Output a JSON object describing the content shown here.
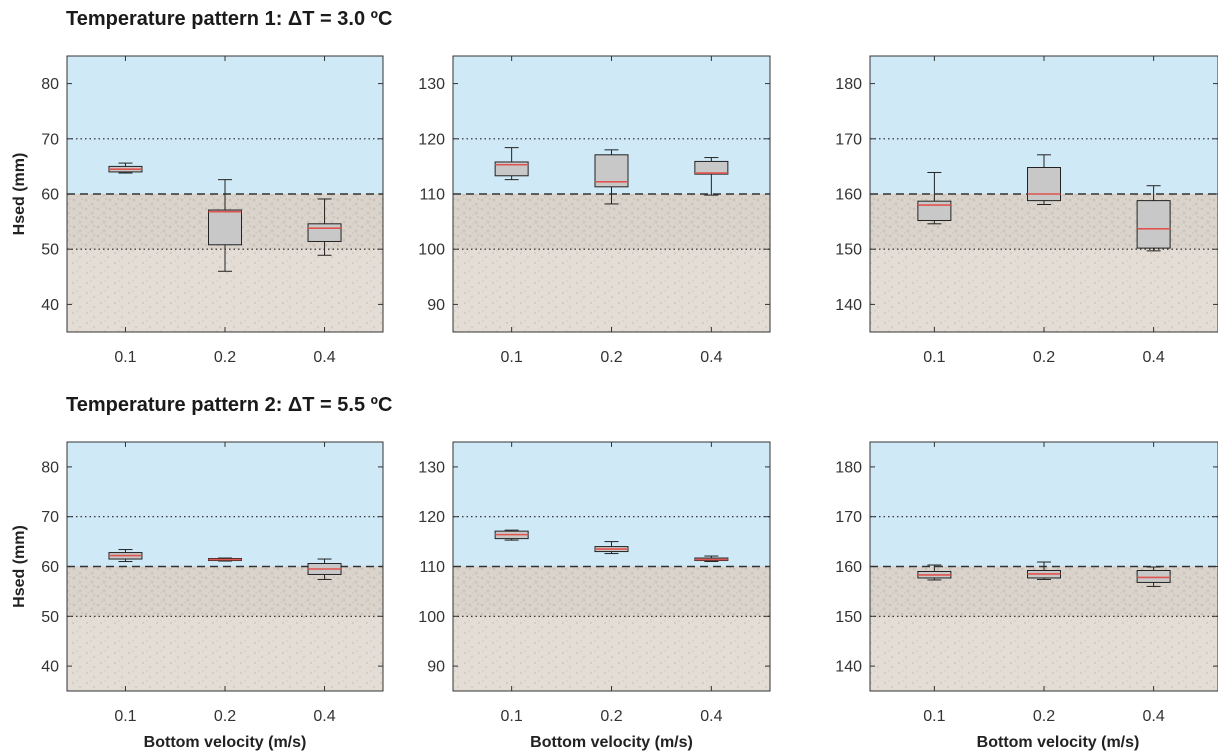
{
  "rows": [
    {
      "title": "Temperature pattern 1: ΔT = 3.0 ºC"
    },
    {
      "title": "Temperature pattern 2: ΔT = 5.5 ºC"
    }
  ],
  "ylabel": "Hsed (mm)",
  "xlabel": "Bottom velocity (m/s)",
  "colors": {
    "water": "#cfe9f7",
    "sediment": "#e3ddd5",
    "transition": "#dcd6cf",
    "box_fill": "#c8c8c8",
    "median": "#e0544f",
    "frame": "#333333"
  },
  "chart_data": [
    {
      "type": "box",
      "row": 1,
      "col": 1,
      "categories": [
        "0.1",
        "0.2",
        "0.4"
      ],
      "ylim": [
        35,
        85
      ],
      "yticks": [
        40,
        50,
        60,
        70,
        80
      ],
      "interface": 60,
      "dotted_lines": [
        50,
        70
      ],
      "boxes": [
        {
          "whisker_low": 63.8,
          "q1": 64.0,
          "median": 64.5,
          "q3": 65.0,
          "whisker_high": 65.6
        },
        {
          "whisker_low": 46.0,
          "q1": 50.8,
          "median": 56.8,
          "q3": 57.1,
          "whisker_high": 62.6
        },
        {
          "whisker_low": 48.9,
          "q1": 51.4,
          "median": 53.8,
          "q3": 54.6,
          "whisker_high": 59.1
        }
      ]
    },
    {
      "type": "box",
      "row": 1,
      "col": 2,
      "categories": [
        "0.1",
        "0.2",
        "0.4"
      ],
      "ylim": [
        85,
        135
      ],
      "yticks": [
        90,
        100,
        110,
        120,
        130
      ],
      "interface": 110,
      "dotted_lines": [
        100,
        120
      ],
      "boxes": [
        {
          "whisker_low": 112.6,
          "q1": 113.3,
          "median": 115.3,
          "q3": 115.8,
          "whisker_high": 118.4
        },
        {
          "whisker_low": 108.2,
          "q1": 111.3,
          "median": 112.2,
          "q3": 117.1,
          "whisker_high": 118.0
        },
        {
          "whisker_low": 109.8,
          "q1": 113.6,
          "median": 113.8,
          "q3": 115.9,
          "whisker_high": 116.6
        }
      ]
    },
    {
      "type": "box",
      "row": 1,
      "col": 3,
      "categories": [
        "0.1",
        "0.2",
        "0.4"
      ],
      "ylim": [
        135,
        185
      ],
      "yticks": [
        140,
        150,
        160,
        170,
        180
      ],
      "interface": 160,
      "dotted_lines": [
        150,
        170
      ],
      "boxes": [
        {
          "whisker_low": 154.6,
          "q1": 155.2,
          "median": 158.0,
          "q3": 158.7,
          "whisker_high": 163.9
        },
        {
          "whisker_low": 158.1,
          "q1": 158.8,
          "median": 160.0,
          "q3": 164.8,
          "whisker_high": 167.1
        },
        {
          "whisker_low": 149.7,
          "q1": 150.2,
          "median": 153.7,
          "q3": 158.8,
          "whisker_high": 161.5
        }
      ]
    },
    {
      "type": "box",
      "row": 2,
      "col": 1,
      "categories": [
        "0.1",
        "0.2",
        "0.4"
      ],
      "ylim": [
        35,
        85
      ],
      "yticks": [
        40,
        50,
        60,
        70,
        80
      ],
      "interface": 60,
      "dotted_lines": [
        50,
        70
      ],
      "boxes": [
        {
          "whisker_low": 61.0,
          "q1": 61.5,
          "median": 62.2,
          "q3": 62.8,
          "whisker_high": 63.4
        },
        {
          "whisker_low": 61.1,
          "q1": 61.2,
          "median": 61.4,
          "q3": 61.6,
          "whisker_high": 61.7
        },
        {
          "whisker_low": 57.4,
          "q1": 58.4,
          "median": 59.5,
          "q3": 60.6,
          "whisker_high": 61.5
        }
      ]
    },
    {
      "type": "box",
      "row": 2,
      "col": 2,
      "categories": [
        "0.1",
        "0.2",
        "0.4"
      ],
      "ylim": [
        85,
        135
      ],
      "yticks": [
        90,
        100,
        110,
        120,
        130
      ],
      "interface": 110,
      "dotted_lines": [
        100,
        120
      ],
      "boxes": [
        {
          "whisker_low": 115.3,
          "q1": 115.6,
          "median": 116.4,
          "q3": 117.1,
          "whisker_high": 117.3
        },
        {
          "whisker_low": 112.6,
          "q1": 113.0,
          "median": 113.5,
          "q3": 114.0,
          "whisker_high": 115.0
        },
        {
          "whisker_low": 111.0,
          "q1": 111.2,
          "median": 111.4,
          "q3": 111.7,
          "whisker_high": 112.1
        }
      ]
    },
    {
      "type": "box",
      "row": 2,
      "col": 3,
      "categories": [
        "0.1",
        "0.2",
        "0.4"
      ],
      "ylim": [
        135,
        185
      ],
      "yticks": [
        140,
        150,
        160,
        170,
        180
      ],
      "interface": 160,
      "dotted_lines": [
        150,
        170
      ],
      "boxes": [
        {
          "whisker_low": 157.3,
          "q1": 157.7,
          "median": 158.3,
          "q3": 159.0,
          "whisker_high": 160.3
        },
        {
          "whisker_low": 157.4,
          "q1": 157.7,
          "median": 158.5,
          "q3": 159.2,
          "whisker_high": 160.9
        },
        {
          "whisker_low": 156.0,
          "q1": 156.8,
          "median": 157.8,
          "q3": 159.2,
          "whisker_high": 159.9
        }
      ]
    }
  ]
}
